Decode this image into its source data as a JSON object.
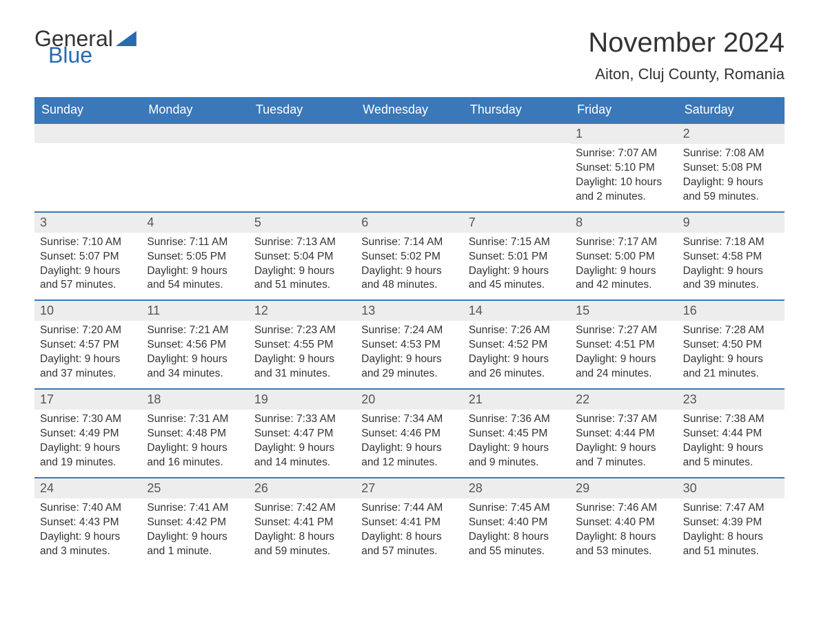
{
  "logo": {
    "text1": "General",
    "text2": "Blue"
  },
  "title": "November 2024",
  "location": "Aiton, Cluj County, Romania",
  "colors": {
    "header_bg": "#3a78b9",
    "header_text": "#ffffff",
    "daynum_bg": "#ededed",
    "border": "#3a78b9",
    "logo_blue": "#2a6ab0",
    "body_text": "#333333"
  },
  "weekdays": [
    "Sunday",
    "Monday",
    "Tuesday",
    "Wednesday",
    "Thursday",
    "Friday",
    "Saturday"
  ],
  "weeks": [
    [
      {
        "day": "",
        "sunrise": "",
        "sunset": "",
        "daylight": ""
      },
      {
        "day": "",
        "sunrise": "",
        "sunset": "",
        "daylight": ""
      },
      {
        "day": "",
        "sunrise": "",
        "sunset": "",
        "daylight": ""
      },
      {
        "day": "",
        "sunrise": "",
        "sunset": "",
        "daylight": ""
      },
      {
        "day": "",
        "sunrise": "",
        "sunset": "",
        "daylight": ""
      },
      {
        "day": "1",
        "sunrise": "Sunrise: 7:07 AM",
        "sunset": "Sunset: 5:10 PM",
        "daylight": "Daylight: 10 hours and 2 minutes."
      },
      {
        "day": "2",
        "sunrise": "Sunrise: 7:08 AM",
        "sunset": "Sunset: 5:08 PM",
        "daylight": "Daylight: 9 hours and 59 minutes."
      }
    ],
    [
      {
        "day": "3",
        "sunrise": "Sunrise: 7:10 AM",
        "sunset": "Sunset: 5:07 PM",
        "daylight": "Daylight: 9 hours and 57 minutes."
      },
      {
        "day": "4",
        "sunrise": "Sunrise: 7:11 AM",
        "sunset": "Sunset: 5:05 PM",
        "daylight": "Daylight: 9 hours and 54 minutes."
      },
      {
        "day": "5",
        "sunrise": "Sunrise: 7:13 AM",
        "sunset": "Sunset: 5:04 PM",
        "daylight": "Daylight: 9 hours and 51 minutes."
      },
      {
        "day": "6",
        "sunrise": "Sunrise: 7:14 AM",
        "sunset": "Sunset: 5:02 PM",
        "daylight": "Daylight: 9 hours and 48 minutes."
      },
      {
        "day": "7",
        "sunrise": "Sunrise: 7:15 AM",
        "sunset": "Sunset: 5:01 PM",
        "daylight": "Daylight: 9 hours and 45 minutes."
      },
      {
        "day": "8",
        "sunrise": "Sunrise: 7:17 AM",
        "sunset": "Sunset: 5:00 PM",
        "daylight": "Daylight: 9 hours and 42 minutes."
      },
      {
        "day": "9",
        "sunrise": "Sunrise: 7:18 AM",
        "sunset": "Sunset: 4:58 PM",
        "daylight": "Daylight: 9 hours and 39 minutes."
      }
    ],
    [
      {
        "day": "10",
        "sunrise": "Sunrise: 7:20 AM",
        "sunset": "Sunset: 4:57 PM",
        "daylight": "Daylight: 9 hours and 37 minutes."
      },
      {
        "day": "11",
        "sunrise": "Sunrise: 7:21 AM",
        "sunset": "Sunset: 4:56 PM",
        "daylight": "Daylight: 9 hours and 34 minutes."
      },
      {
        "day": "12",
        "sunrise": "Sunrise: 7:23 AM",
        "sunset": "Sunset: 4:55 PM",
        "daylight": "Daylight: 9 hours and 31 minutes."
      },
      {
        "day": "13",
        "sunrise": "Sunrise: 7:24 AM",
        "sunset": "Sunset: 4:53 PM",
        "daylight": "Daylight: 9 hours and 29 minutes."
      },
      {
        "day": "14",
        "sunrise": "Sunrise: 7:26 AM",
        "sunset": "Sunset: 4:52 PM",
        "daylight": "Daylight: 9 hours and 26 minutes."
      },
      {
        "day": "15",
        "sunrise": "Sunrise: 7:27 AM",
        "sunset": "Sunset: 4:51 PM",
        "daylight": "Daylight: 9 hours and 24 minutes."
      },
      {
        "day": "16",
        "sunrise": "Sunrise: 7:28 AM",
        "sunset": "Sunset: 4:50 PM",
        "daylight": "Daylight: 9 hours and 21 minutes."
      }
    ],
    [
      {
        "day": "17",
        "sunrise": "Sunrise: 7:30 AM",
        "sunset": "Sunset: 4:49 PM",
        "daylight": "Daylight: 9 hours and 19 minutes."
      },
      {
        "day": "18",
        "sunrise": "Sunrise: 7:31 AM",
        "sunset": "Sunset: 4:48 PM",
        "daylight": "Daylight: 9 hours and 16 minutes."
      },
      {
        "day": "19",
        "sunrise": "Sunrise: 7:33 AM",
        "sunset": "Sunset: 4:47 PM",
        "daylight": "Daylight: 9 hours and 14 minutes."
      },
      {
        "day": "20",
        "sunrise": "Sunrise: 7:34 AM",
        "sunset": "Sunset: 4:46 PM",
        "daylight": "Daylight: 9 hours and 12 minutes."
      },
      {
        "day": "21",
        "sunrise": "Sunrise: 7:36 AM",
        "sunset": "Sunset: 4:45 PM",
        "daylight": "Daylight: 9 hours and 9 minutes."
      },
      {
        "day": "22",
        "sunrise": "Sunrise: 7:37 AM",
        "sunset": "Sunset: 4:44 PM",
        "daylight": "Daylight: 9 hours and 7 minutes."
      },
      {
        "day": "23",
        "sunrise": "Sunrise: 7:38 AM",
        "sunset": "Sunset: 4:44 PM",
        "daylight": "Daylight: 9 hours and 5 minutes."
      }
    ],
    [
      {
        "day": "24",
        "sunrise": "Sunrise: 7:40 AM",
        "sunset": "Sunset: 4:43 PM",
        "daylight": "Daylight: 9 hours and 3 minutes."
      },
      {
        "day": "25",
        "sunrise": "Sunrise: 7:41 AM",
        "sunset": "Sunset: 4:42 PM",
        "daylight": "Daylight: 9 hours and 1 minute."
      },
      {
        "day": "26",
        "sunrise": "Sunrise: 7:42 AM",
        "sunset": "Sunset: 4:41 PM",
        "daylight": "Daylight: 8 hours and 59 minutes."
      },
      {
        "day": "27",
        "sunrise": "Sunrise: 7:44 AM",
        "sunset": "Sunset: 4:41 PM",
        "daylight": "Daylight: 8 hours and 57 minutes."
      },
      {
        "day": "28",
        "sunrise": "Sunrise: 7:45 AM",
        "sunset": "Sunset: 4:40 PM",
        "daylight": "Daylight: 8 hours and 55 minutes."
      },
      {
        "day": "29",
        "sunrise": "Sunrise: 7:46 AM",
        "sunset": "Sunset: 4:40 PM",
        "daylight": "Daylight: 8 hours and 53 minutes."
      },
      {
        "day": "30",
        "sunrise": "Sunrise: 7:47 AM",
        "sunset": "Sunset: 4:39 PM",
        "daylight": "Daylight: 8 hours and 51 minutes."
      }
    ]
  ]
}
